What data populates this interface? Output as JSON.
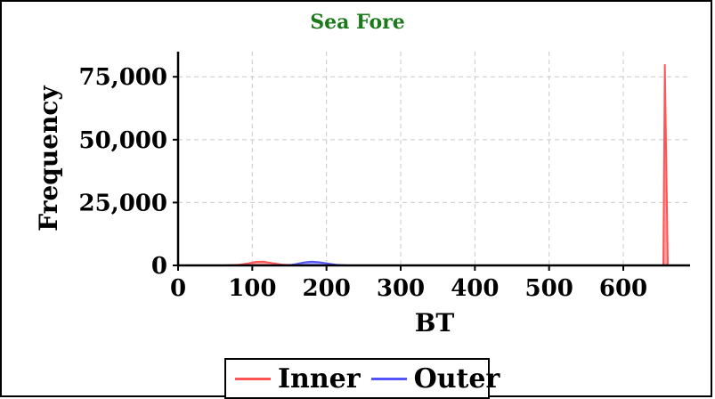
{
  "chart_data": {
    "type": "area",
    "title": "Sea Fore",
    "xlabel": "BT",
    "ylabel": "Frequency",
    "xlim": [
      0,
      690
    ],
    "ylim": [
      0,
      85000
    ],
    "xticks": [
      0,
      100,
      200,
      300,
      400,
      500,
      600
    ],
    "xtick_labels": [
      "0",
      "100",
      "200",
      "300",
      "400",
      "500",
      "600"
    ],
    "yticks": [
      0,
      25000,
      50000,
      75000
    ],
    "ytick_labels": [
      "0",
      "25,000",
      "50,000",
      "75,000"
    ],
    "grid": true,
    "legend_position": "bottom",
    "series": [
      {
        "name": "Inner",
        "color": "#ff5555",
        "x": [
          0,
          60,
          80,
          95,
          105,
          115,
          125,
          140,
          160,
          180,
          200,
          300,
          400,
          500,
          600,
          650,
          654,
          656,
          660
        ],
        "y": [
          0,
          0,
          200,
          800,
          1400,
          1500,
          1000,
          300,
          100,
          0,
          0,
          0,
          0,
          0,
          0,
          0,
          0,
          80000,
          0
        ]
      },
      {
        "name": "Outer",
        "color": "#5555ff",
        "x": [
          0,
          100,
          130,
          150,
          160,
          170,
          180,
          190,
          200,
          215,
          230,
          300,
          400,
          500,
          600,
          660
        ],
        "y": [
          0,
          0,
          0,
          100,
          600,
          1200,
          1500,
          1300,
          800,
          200,
          0,
          0,
          0,
          0,
          0,
          0
        ]
      }
    ]
  }
}
